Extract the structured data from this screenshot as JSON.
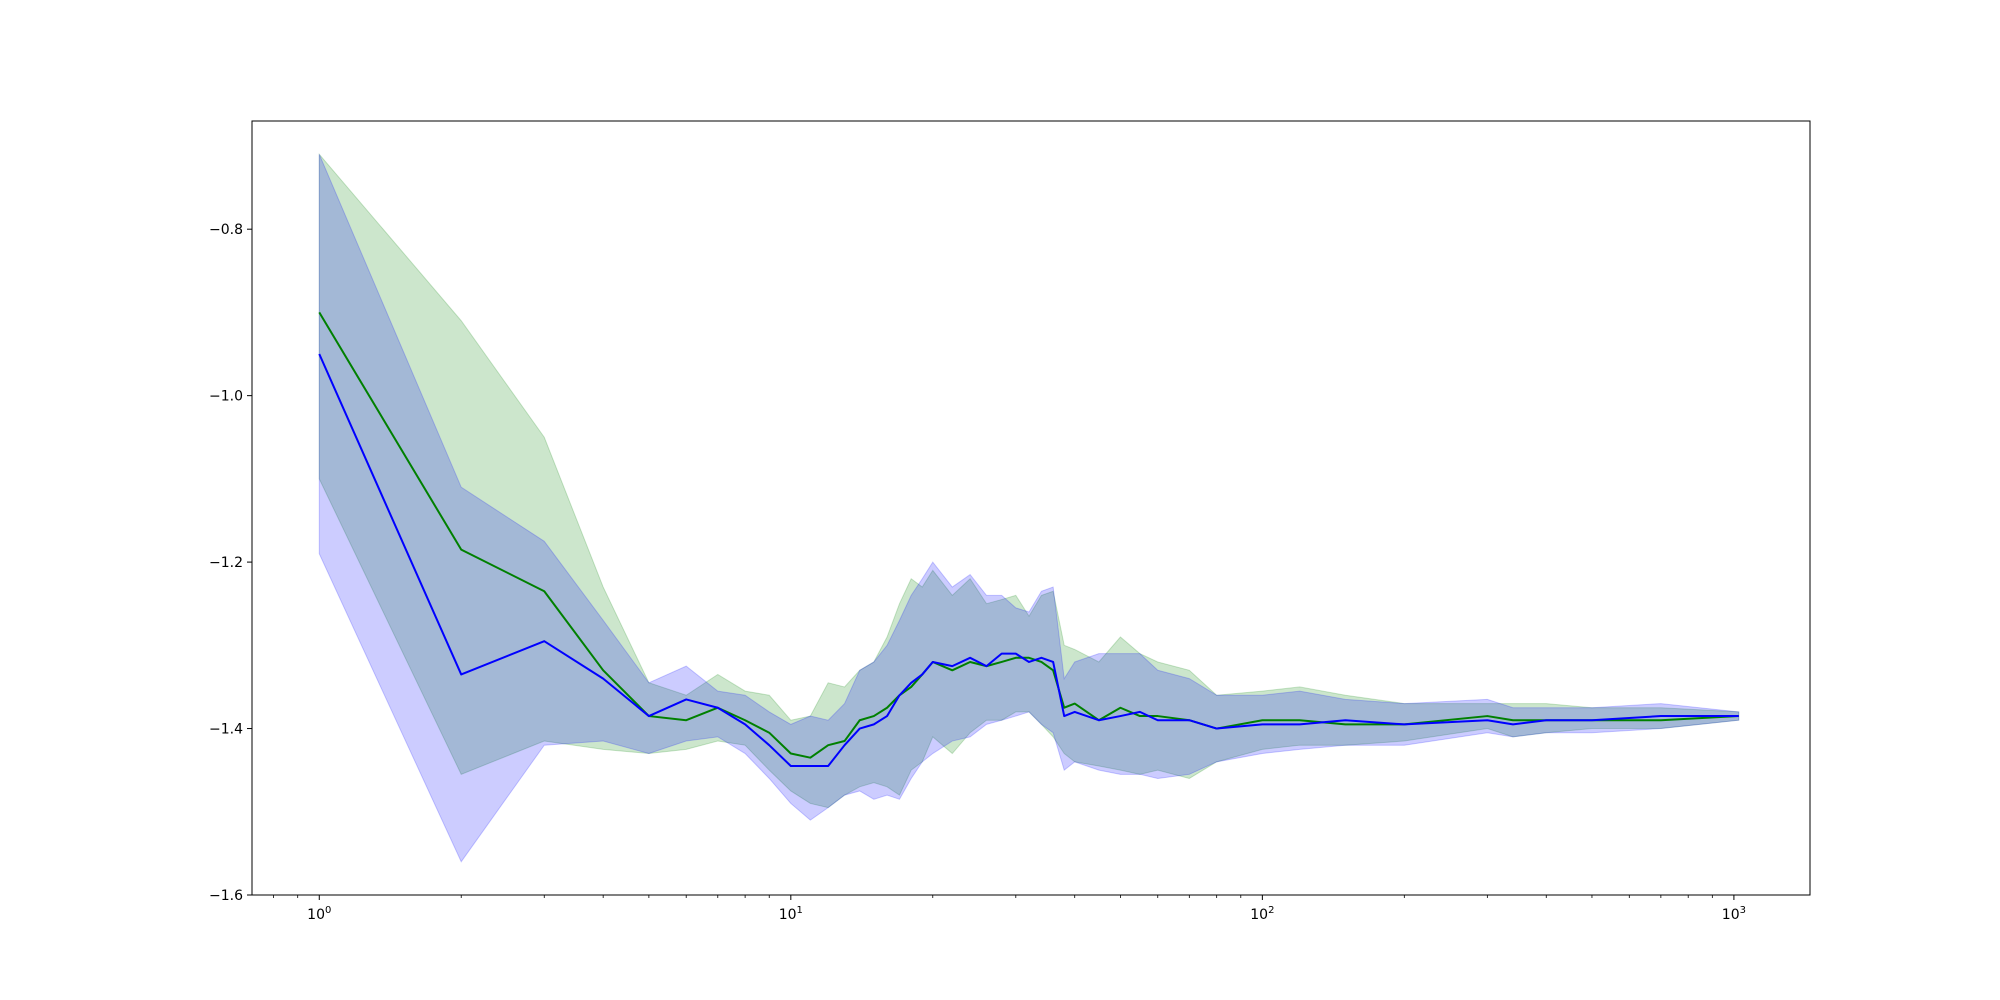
{
  "chart_data": {
    "type": "area",
    "title": "",
    "xlabel": "",
    "ylabel": "",
    "xscale": "log",
    "xlim": [
      0.72,
      1450
    ],
    "ylim": [
      -1.6,
      -0.67
    ],
    "grid": false,
    "x_ticks": [
      {
        "base": "10",
        "exp": "0",
        "value": 1
      },
      {
        "base": "10",
        "exp": "1",
        "value": 10
      },
      {
        "base": "10",
        "exp": "2",
        "value": 100
      },
      {
        "base": "10",
        "exp": "3",
        "value": 1000
      }
    ],
    "y_ticks": [
      {
        "label": "−0.8",
        "value": -0.8
      },
      {
        "label": "−1.0",
        "value": -1.0
      },
      {
        "label": "−1.2",
        "value": -1.2
      },
      {
        "label": "−1.4",
        "value": -1.4
      },
      {
        "label": "−1.6",
        "value": -1.6
      }
    ],
    "series": [
      {
        "color": "#008000",
        "band_color": "#008000",
        "band_opacity": 0.2,
        "points": [
          [
            1,
            -0.9,
            -0.71,
            -1.1
          ],
          [
            2,
            -1.185,
            -0.91,
            -1.455
          ],
          [
            3,
            -1.235,
            -1.05,
            -1.415
          ],
          [
            4,
            -1.33,
            -1.23,
            -1.425
          ],
          [
            5,
            -1.385,
            -1.345,
            -1.43
          ],
          [
            6,
            -1.39,
            -1.36,
            -1.425
          ],
          [
            7,
            -1.375,
            -1.335,
            -1.415
          ],
          [
            8,
            -1.39,
            -1.355,
            -1.42
          ],
          [
            9,
            -1.405,
            -1.36,
            -1.45
          ],
          [
            10,
            -1.43,
            -1.39,
            -1.475
          ],
          [
            11,
            -1.435,
            -1.385,
            -1.49
          ],
          [
            12,
            -1.42,
            -1.345,
            -1.495
          ],
          [
            13,
            -1.415,
            -1.35,
            -1.48
          ],
          [
            14,
            -1.39,
            -1.33,
            -1.47
          ],
          [
            15,
            -1.385,
            -1.32,
            -1.465
          ],
          [
            16,
            -1.375,
            -1.29,
            -1.47
          ],
          [
            17,
            -1.36,
            -1.25,
            -1.48
          ],
          [
            18,
            -1.35,
            -1.22,
            -1.45
          ],
          [
            19,
            -1.335,
            -1.23,
            -1.44
          ],
          [
            20,
            -1.32,
            -1.21,
            -1.41
          ],
          [
            22,
            -1.33,
            -1.24,
            -1.43
          ],
          [
            24,
            -1.32,
            -1.22,
            -1.405
          ],
          [
            26,
            -1.325,
            -1.25,
            -1.39
          ],
          [
            28,
            -1.32,
            -1.245,
            -1.39
          ],
          [
            30,
            -1.315,
            -1.24,
            -1.38
          ],
          [
            32,
            -1.315,
            -1.265,
            -1.38
          ],
          [
            34,
            -1.32,
            -1.24,
            -1.395
          ],
          [
            36,
            -1.33,
            -1.235,
            -1.41
          ],
          [
            38,
            -1.375,
            -1.3,
            -1.43
          ],
          [
            40,
            -1.37,
            -1.305,
            -1.44
          ],
          [
            45,
            -1.39,
            -1.32,
            -1.445
          ],
          [
            50,
            -1.375,
            -1.29,
            -1.45
          ],
          [
            55,
            -1.385,
            -1.31,
            -1.455
          ],
          [
            60,
            -1.385,
            -1.32,
            -1.45
          ],
          [
            70,
            -1.39,
            -1.33,
            -1.46
          ],
          [
            80,
            -1.4,
            -1.36,
            -1.44
          ],
          [
            100,
            -1.39,
            -1.355,
            -1.425
          ],
          [
            120,
            -1.39,
            -1.35,
            -1.42
          ],
          [
            150,
            -1.395,
            -1.36,
            -1.42
          ],
          [
            200,
            -1.395,
            -1.37,
            -1.415
          ],
          [
            300,
            -1.385,
            -1.37,
            -1.4
          ],
          [
            340,
            -1.39,
            -1.37,
            -1.41
          ],
          [
            400,
            -1.39,
            -1.37,
            -1.405
          ],
          [
            500,
            -1.39,
            -1.375,
            -1.4
          ],
          [
            700,
            -1.39,
            -1.375,
            -1.4
          ],
          [
            1024,
            -1.385,
            -1.38,
            -1.39
          ]
        ]
      },
      {
        "color": "#0000ff",
        "band_color": "#0000ff",
        "band_opacity": 0.2,
        "points": [
          [
            1,
            -0.95,
            -0.71,
            -1.19
          ],
          [
            2,
            -1.335,
            -1.11,
            -1.56
          ],
          [
            3,
            -1.295,
            -1.175,
            -1.42
          ],
          [
            4,
            -1.34,
            -1.27,
            -1.415
          ],
          [
            5,
            -1.385,
            -1.345,
            -1.43
          ],
          [
            6,
            -1.365,
            -1.325,
            -1.415
          ],
          [
            7,
            -1.375,
            -1.355,
            -1.41
          ],
          [
            8,
            -1.395,
            -1.36,
            -1.43
          ],
          [
            9,
            -1.42,
            -1.38,
            -1.46
          ],
          [
            10,
            -1.445,
            -1.395,
            -1.49
          ],
          [
            11,
            -1.445,
            -1.385,
            -1.51
          ],
          [
            12,
            -1.445,
            -1.39,
            -1.495
          ],
          [
            13,
            -1.42,
            -1.37,
            -1.48
          ],
          [
            14,
            -1.4,
            -1.33,
            -1.475
          ],
          [
            15,
            -1.395,
            -1.32,
            -1.485
          ],
          [
            16,
            -1.385,
            -1.3,
            -1.48
          ],
          [
            17,
            -1.36,
            -1.27,
            -1.485
          ],
          [
            18,
            -1.345,
            -1.24,
            -1.46
          ],
          [
            19,
            -1.335,
            -1.22,
            -1.44
          ],
          [
            20,
            -1.32,
            -1.2,
            -1.43
          ],
          [
            22,
            -1.325,
            -1.23,
            -1.415
          ],
          [
            24,
            -1.315,
            -1.215,
            -1.41
          ],
          [
            26,
            -1.325,
            -1.24,
            -1.395
          ],
          [
            28,
            -1.31,
            -1.24,
            -1.39
          ],
          [
            30,
            -1.31,
            -1.255,
            -1.385
          ],
          [
            32,
            -1.32,
            -1.26,
            -1.38
          ],
          [
            34,
            -1.315,
            -1.235,
            -1.395
          ],
          [
            36,
            -1.32,
            -1.23,
            -1.405
          ],
          [
            38,
            -1.385,
            -1.34,
            -1.45
          ],
          [
            40,
            -1.38,
            -1.32,
            -1.44
          ],
          [
            45,
            -1.39,
            -1.31,
            -1.45
          ],
          [
            50,
            -1.385,
            -1.31,
            -1.455
          ],
          [
            55,
            -1.38,
            -1.31,
            -1.455
          ],
          [
            60,
            -1.39,
            -1.33,
            -1.46
          ],
          [
            70,
            -1.39,
            -1.34,
            -1.455
          ],
          [
            80,
            -1.4,
            -1.36,
            -1.44
          ],
          [
            100,
            -1.395,
            -1.36,
            -1.43
          ],
          [
            120,
            -1.395,
            -1.355,
            -1.425
          ],
          [
            150,
            -1.39,
            -1.365,
            -1.42
          ],
          [
            200,
            -1.395,
            -1.37,
            -1.42
          ],
          [
            300,
            -1.39,
            -1.365,
            -1.405
          ],
          [
            340,
            -1.395,
            -1.375,
            -1.41
          ],
          [
            400,
            -1.39,
            -1.375,
            -1.405
          ],
          [
            500,
            -1.39,
            -1.375,
            -1.405
          ],
          [
            700,
            -1.385,
            -1.37,
            -1.4
          ],
          [
            1024,
            -1.385,
            -1.38,
            -1.39
          ]
        ]
      }
    ]
  }
}
